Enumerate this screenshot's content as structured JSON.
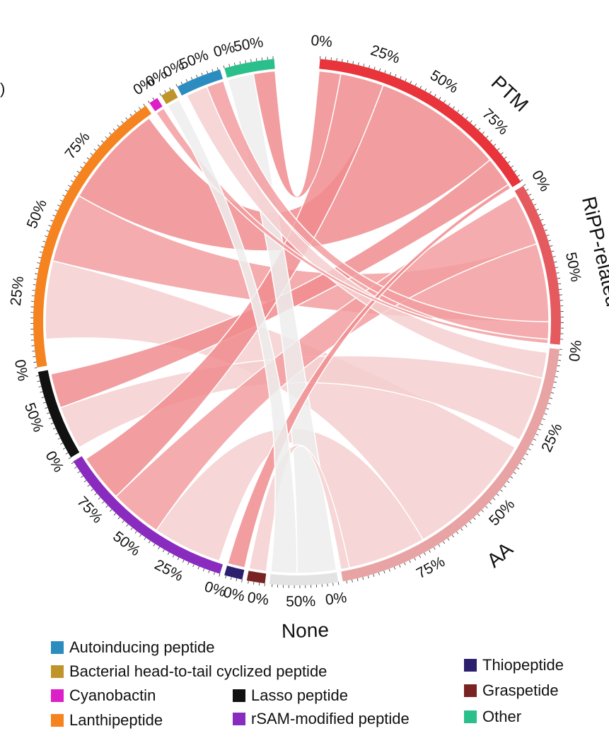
{
  "panel_label": ")",
  "chart_data": {
    "type": "chord",
    "title": "",
    "tick_label_fraction_suffix": "%",
    "target_groups": [
      {
        "name": "PTM",
        "color": "#e8343a",
        "ribbon_color": "#f08c8e"
      },
      {
        "name": "RiPP-related",
        "color": "#e45a5f",
        "ribbon_color": "#f29ea0"
      },
      {
        "name": "AA",
        "color": "#e8a3a4",
        "ribbon_color": "#f5cfcf"
      },
      {
        "name": "None",
        "color": "#e3e3e3",
        "ribbon_color": "#ededed"
      }
    ],
    "source_groups": [
      {
        "name": "Other",
        "color": "#2bbf8c"
      },
      {
        "name": "Autoinducing peptide",
        "color": "#2b8cbf"
      },
      {
        "name": "Bacterial head-to-tail cyclized peptide",
        "color": "#bf952b"
      },
      {
        "name": "Cyanobactin",
        "color": "#dc1fc6"
      },
      {
        "name": "Lanthipeptide",
        "color": "#f5831f"
      },
      {
        "name": "Lasso peptide",
        "color": "#111111"
      },
      {
        "name": "rSAM-modified peptide",
        "color": "#8a2bbf"
      },
      {
        "name": "Thiopeptide",
        "color": "#2c1f6e"
      },
      {
        "name": "Graspetide",
        "color": "#7a2323"
      }
    ],
    "tick_labels": {
      "PTM": [
        "0%",
        "25%",
        "50%",
        "75%"
      ],
      "RiPP-related": [
        "0%",
        "50%"
      ],
      "AA": [
        "0%",
        "25%",
        "50%",
        "75%"
      ],
      "None": [
        "0%",
        "50%"
      ],
      "Other": [
        "0%",
        "50%"
      ],
      "Autoinducing peptide": [
        "0%",
        "50%"
      ],
      "Bacterial head-to-tail cyclized peptide": [
        "0%"
      ],
      "Cyanobactin": [
        "0%"
      ],
      "Lanthipeptide": [
        "0%",
        "25%",
        "50%",
        "75%"
      ],
      "Lasso peptide": [
        "0%",
        "50%"
      ],
      "rSAM-modified peptide": [
        "0%",
        "25%",
        "50%",
        "75%"
      ],
      "Thiopeptide": [
        "0%"
      ],
      "Graspetide": [
        "0%"
      ]
    },
    "legend": {
      "placement": "bottom",
      "columns": [
        [
          "Autoinducing peptide",
          "Bacterial head-to-tail cyclized peptide",
          "Cyanobactin",
          "Lanthipeptide"
        ],
        [
          "Lasso peptide",
          "rSAM-modified peptide"
        ],
        [
          "Thiopeptide",
          "Graspetide",
          "Other"
        ]
      ]
    }
  }
}
